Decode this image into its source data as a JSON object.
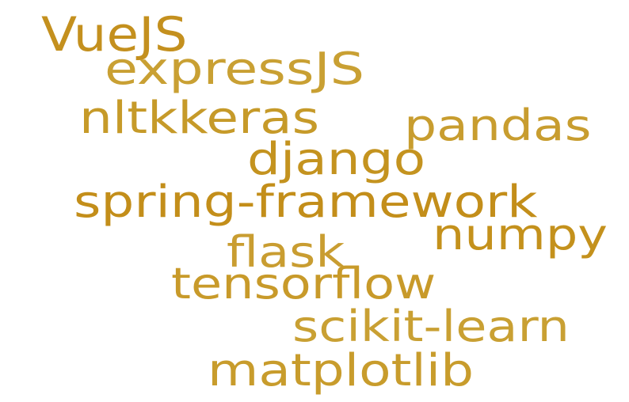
{
  "words": [
    {
      "text": "VueJS",
      "color": "#C4901E"
    },
    {
      "text": "expressJS",
      "color": "#C9A033"
    },
    {
      "text": "nltkkeras",
      "color": "#C69A29"
    },
    {
      "text": "pandas",
      "color": "#C89D2F"
    },
    {
      "text": "django",
      "color": "#C4931F"
    },
    {
      "text": "spring-framework",
      "color": "#C38E1A"
    },
    {
      "text": "numpy",
      "color": "#C4911C"
    },
    {
      "text": "flask",
      "color": "#C99D31"
    },
    {
      "text": "tensorflow",
      "color": "#C89A2A"
    },
    {
      "text": "scikit-learn",
      "color": "#C9A033"
    },
    {
      "text": "matplotlib",
      "color": "#C89C2C"
    }
  ]
}
